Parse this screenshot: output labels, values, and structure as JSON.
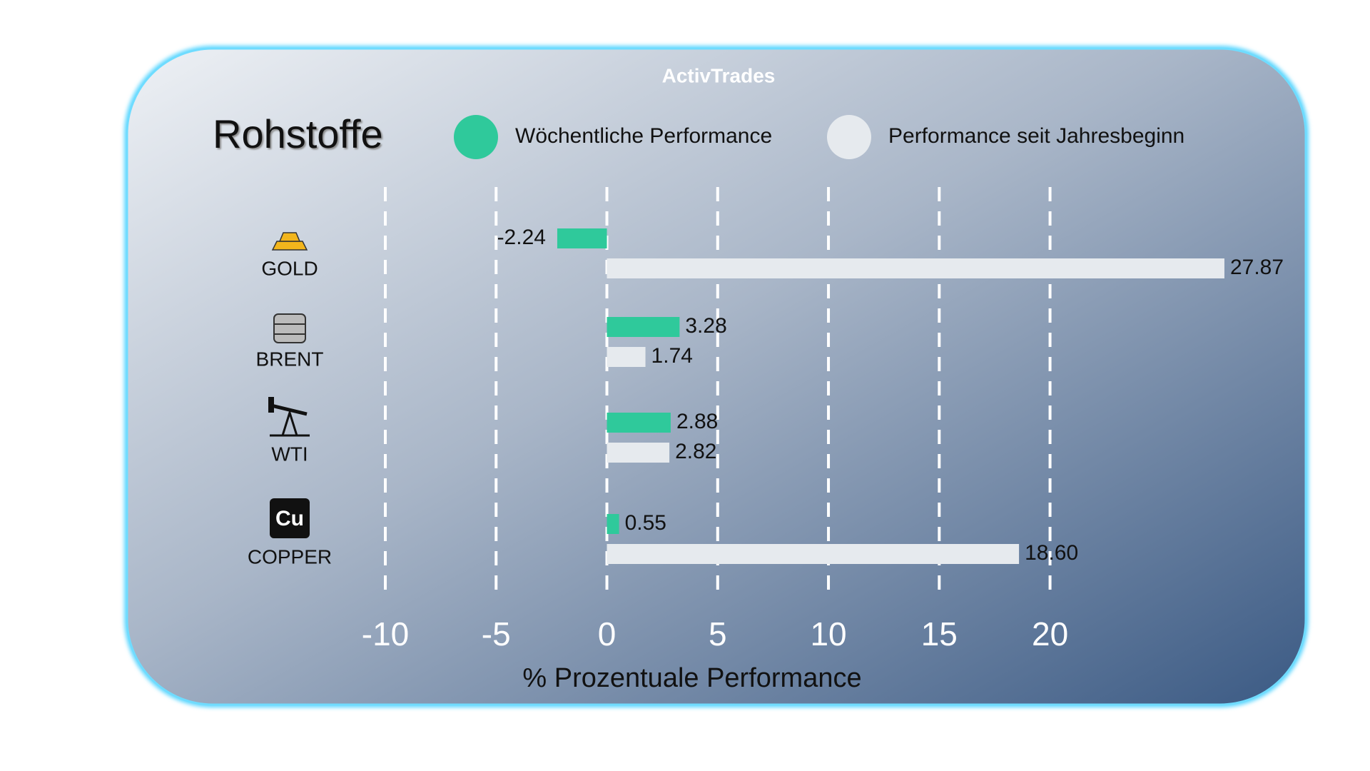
{
  "chart_data": {
    "type": "bar",
    "orientation": "horizontal",
    "brand": "ActivTrades",
    "title": "Rohstoffe",
    "categories": [
      "GOLD",
      "BRENT",
      "WTI",
      "COPPER"
    ],
    "series": [
      {
        "name": "Wöchentliche Performance",
        "color": "#2fc99b",
        "values": [
          -2.24,
          3.28,
          2.88,
          0.55
        ]
      },
      {
        "name": "Performance seit Jahresbeginn",
        "color": "#e6eaee",
        "values": [
          27.87,
          1.74,
          2.82,
          18.6
        ],
        "value_labels": [
          "27.87",
          "1.74",
          "2.82",
          "18.60"
        ]
      }
    ],
    "xlabel": "% Prozentuale Performance",
    "xlim": [
      -10,
      28
    ],
    "xticks": [
      -10,
      -5,
      0,
      5,
      10,
      15,
      20
    ],
    "grid": true
  }
}
